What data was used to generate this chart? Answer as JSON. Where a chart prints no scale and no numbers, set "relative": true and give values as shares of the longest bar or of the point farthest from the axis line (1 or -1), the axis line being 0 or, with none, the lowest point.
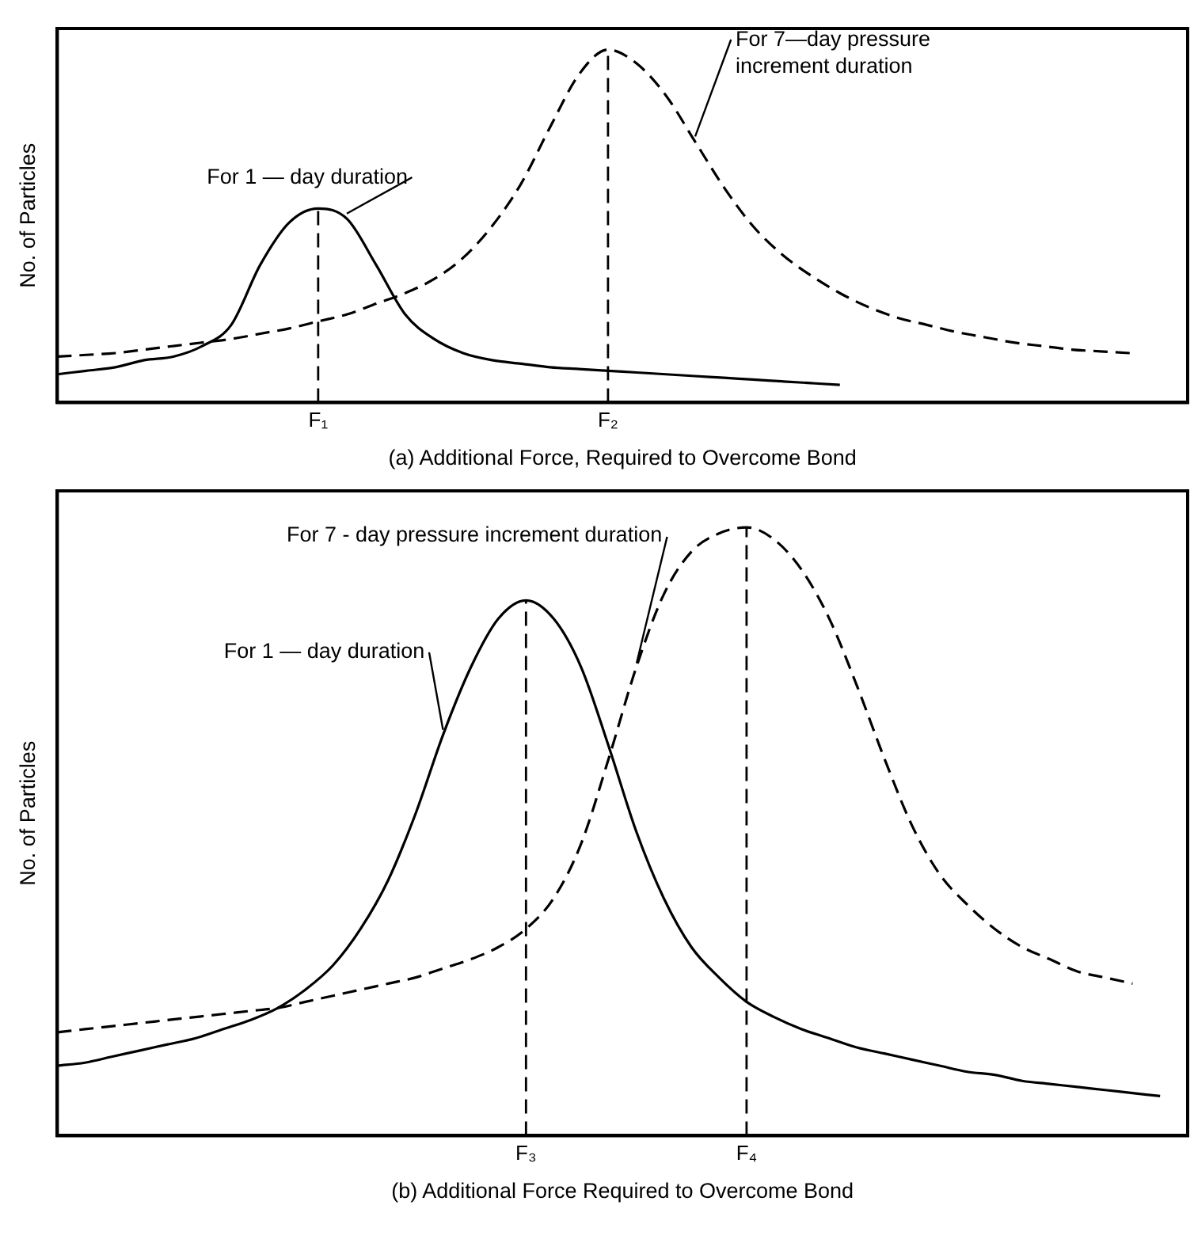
{
  "chart_data": [
    {
      "type": "line",
      "relative": true,
      "xlabel": "(a) Additional Force, Required to Overcome Bond",
      "ylabel": "No. of Particles",
      "grid": false,
      "legend": false,
      "marker": "none",
      "categories": [
        null,
        null,
        null,
        null,
        null,
        null,
        null,
        null,
        null,
        "F₁",
        null,
        null,
        null,
        null,
        null,
        null,
        null,
        null,
        null,
        "F₂",
        null,
        null,
        null,
        null,
        null,
        null,
        null,
        null,
        null,
        null,
        null,
        null,
        null,
        null,
        null,
        null,
        null,
        null,
        null,
        null
      ],
      "series": [
        {
          "name": "For 1 — day duration",
          "color": "#000000",
          "line_style": "solid",
          "values": [
            0.08,
            0.09,
            0.1,
            0.12,
            0.13,
            0.16,
            0.22,
            0.39,
            0.51,
            0.55,
            0.52,
            0.39,
            0.25,
            0.18,
            0.14,
            0.12,
            0.11,
            0.1,
            0.095,
            0.09,
            0.085,
            0.08,
            0.075,
            0.07,
            0.065,
            0.06,
            0.055,
            0.05,
            null,
            null,
            null,
            null,
            null,
            null,
            null,
            null,
            null,
            null,
            null,
            null
          ]
        },
        {
          "name": "For 7—day pressure increment duration",
          "color": "#000000",
          "line_style": "dashed",
          "values": [
            0.13,
            0.135,
            0.14,
            0.15,
            0.16,
            0.17,
            0.18,
            0.195,
            0.21,
            0.23,
            0.25,
            0.28,
            0.31,
            0.35,
            0.41,
            0.5,
            0.62,
            0.78,
            0.93,
            1.0,
            0.96,
            0.87,
            0.74,
            0.61,
            0.5,
            0.42,
            0.36,
            0.31,
            0.27,
            0.24,
            0.22,
            0.2,
            0.185,
            0.17,
            0.16,
            0.15,
            0.145,
            0.14,
            null,
            null
          ]
        }
      ],
      "ref_lines": [
        {
          "axis": "x",
          "value": "F₁",
          "line_style": "dashed"
        },
        {
          "axis": "x",
          "value": "F₂",
          "line_style": "dashed"
        }
      ]
    },
    {
      "type": "line",
      "relative": true,
      "xlabel": "(b) Additional Force Required to Overcome Bond",
      "ylabel": "No. of Particles",
      "grid": false,
      "legend": false,
      "marker": "none",
      "categories": [
        null,
        null,
        null,
        null,
        null,
        null,
        null,
        null,
        null,
        null,
        null,
        null,
        null,
        null,
        null,
        null,
        null,
        "F₃",
        null,
        null,
        null,
        null,
        null,
        null,
        null,
        "F₄",
        null,
        null,
        null,
        null,
        null,
        null,
        null,
        null,
        null,
        null,
        null,
        null,
        null,
        null,
        null,
        null
      ],
      "series": [
        {
          "name": "For 1 — day duration",
          "color": "#000000",
          "line_style": "solid",
          "values": [
            0.115,
            0.12,
            0.13,
            0.14,
            0.15,
            0.16,
            0.175,
            0.19,
            0.21,
            0.24,
            0.28,
            0.34,
            0.42,
            0.53,
            0.66,
            0.77,
            0.85,
            0.88,
            0.85,
            0.77,
            0.64,
            0.5,
            0.39,
            0.31,
            0.26,
            0.22,
            0.195,
            0.175,
            0.16,
            0.145,
            0.135,
            0.125,
            0.115,
            0.105,
            0.1,
            0.09,
            0.085,
            0.08,
            0.075,
            0.07,
            0.065,
            null
          ]
        },
        {
          "name": "For 7 - day pressure increment duration",
          "color": "#000000",
          "line_style": "dashed",
          "values": [
            0.17,
            0.175,
            0.18,
            0.185,
            0.19,
            0.195,
            0.2,
            0.205,
            0.21,
            0.22,
            0.23,
            0.24,
            0.25,
            0.26,
            0.275,
            0.29,
            0.31,
            0.34,
            0.39,
            0.48,
            0.62,
            0.77,
            0.89,
            0.96,
            0.99,
            1.0,
            0.98,
            0.93,
            0.85,
            0.74,
            0.62,
            0.51,
            0.43,
            0.38,
            0.34,
            0.31,
            0.29,
            0.27,
            0.26,
            0.25,
            null,
            null
          ]
        }
      ],
      "ref_lines": [
        {
          "axis": "x",
          "value": "F₃",
          "line_style": "dashed"
        },
        {
          "axis": "x",
          "value": "F₄",
          "line_style": "dashed"
        }
      ]
    }
  ]
}
